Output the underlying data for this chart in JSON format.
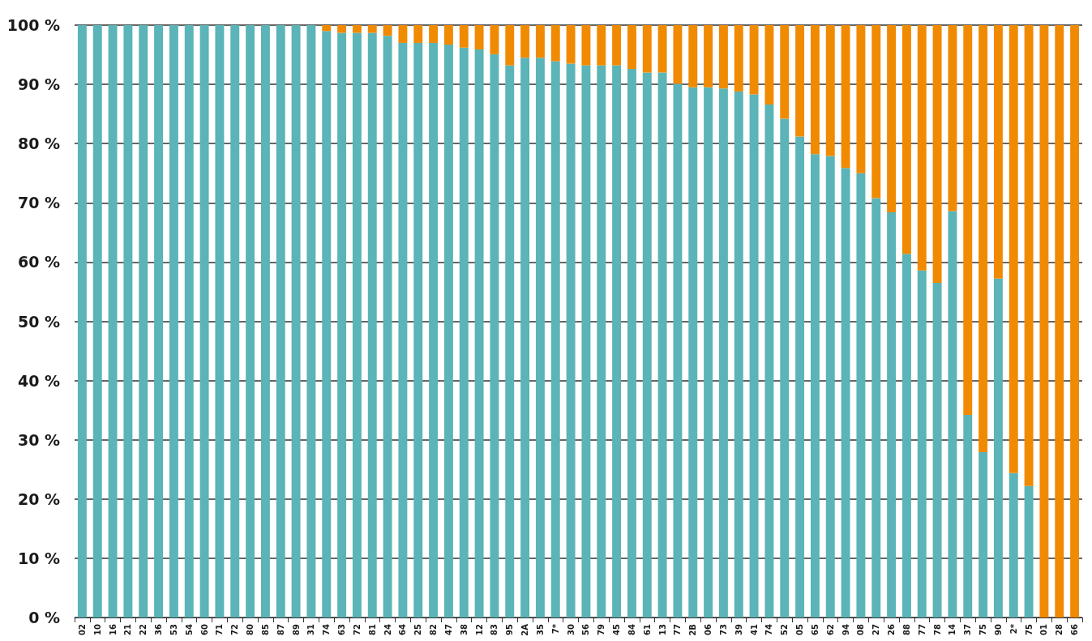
{
  "chart_data": {
    "type": "bar",
    "stacked": true,
    "categories": [
      "02",
      "10",
      "16",
      "21",
      "22",
      "36",
      "53",
      "54",
      "60",
      "71",
      "72",
      "80",
      "85",
      "87",
      "89",
      "31",
      "74",
      "63",
      "72",
      "81",
      "24",
      "64",
      "25",
      "82",
      "47",
      "38",
      "12",
      "83",
      "95",
      "2A",
      "35",
      "7*",
      "30",
      "56",
      "79",
      "45",
      "84",
      "61",
      "13",
      "77",
      "2B",
      "06",
      "73",
      "39",
      "41",
      "74",
      "52",
      "05",
      "65",
      "62",
      "94",
      "08",
      "27",
      "26",
      "88",
      "77",
      "78",
      "14",
      "37",
      "75",
      "90",
      "2*",
      "75",
      "01",
      "28",
      "66"
    ],
    "series": [
      {
        "color": "#5ab4b8",
        "values": [
          100,
          100,
          100,
          100,
          100,
          100,
          100,
          100,
          100,
          100,
          100,
          100,
          100,
          100,
          100,
          100,
          99,
          98.7,
          98.7,
          98.7,
          98.2,
          97,
          97,
          97,
          96.7,
          96.2,
          95.9,
          95.1,
          93.2,
          94.5,
          94.5,
          93.9,
          93.5,
          93.2,
          93.2,
          93.2,
          92.6,
          92,
          92,
          90.1,
          89.5,
          89.5,
          89.3,
          88.8,
          88.3,
          86.6,
          84.2,
          81.2,
          78.2,
          77.9,
          75.9,
          75,
          70.8,
          68.4,
          61.4,
          58.6,
          56.5,
          68.6,
          34.2,
          27.9,
          57.2,
          24.4,
          22.2,
          0,
          0,
          0
        ]
      },
      {
        "color": "#f08a00",
        "values": [
          0,
          0,
          0,
          0,
          0,
          0,
          0,
          0,
          0,
          0,
          0,
          0,
          0,
          0,
          0,
          0,
          1,
          1.3,
          1.3,
          1.3,
          1.8,
          3,
          3,
          3,
          3.3,
          3.8,
          4.1,
          4.9,
          6.8,
          5.5,
          5.5,
          6.1,
          6.5,
          6.8,
          6.8,
          6.8,
          7.4,
          8,
          8,
          9.9,
          10.5,
          10.5,
          10.7,
          11.2,
          11.7,
          13.4,
          15.8,
          18.8,
          21.8,
          22.1,
          24.1,
          25,
          29.2,
          31.6,
          38.6,
          41.4,
          43.5,
          31.4,
          65.8,
          72.1,
          42.8,
          75.6,
          77.8,
          100,
          100,
          100
        ]
      }
    ],
    "ylim": [
      0,
      100
    ],
    "yticks": [
      {
        "value": 0,
        "label": "0 %"
      },
      {
        "value": 10,
        "label": "10 %"
      },
      {
        "value": 20,
        "label": "20 %"
      },
      {
        "value": 30,
        "label": "30 %"
      },
      {
        "value": 40,
        "label": "40 %"
      },
      {
        "value": 50,
        "label": "50 %"
      },
      {
        "value": 60,
        "label": "60 %"
      },
      {
        "value": 70,
        "label": "70 %"
      },
      {
        "value": 80,
        "label": "80 %"
      },
      {
        "value": 90,
        "label": "90 %"
      },
      {
        "value": 100,
        "label": "100 %"
      }
    ],
    "grid": "y"
  }
}
